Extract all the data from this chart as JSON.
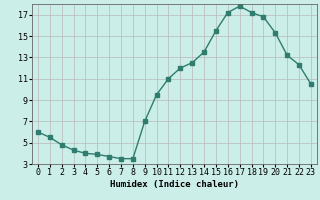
{
  "x": [
    0,
    1,
    2,
    3,
    4,
    5,
    6,
    7,
    8,
    9,
    10,
    11,
    12,
    13,
    14,
    15,
    16,
    17,
    18,
    19,
    20,
    21,
    22,
    23
  ],
  "y": [
    6.0,
    5.5,
    4.8,
    4.3,
    4.0,
    3.9,
    3.7,
    3.5,
    3.5,
    7.0,
    9.5,
    11.0,
    12.0,
    12.5,
    13.5,
    15.5,
    17.2,
    17.8,
    17.2,
    16.8,
    15.3,
    13.2,
    12.3,
    10.5
  ],
  "line_color": "#2e7d6e",
  "marker": "s",
  "marker_size": 2.5,
  "bg_color": "#cceee8",
  "grid_color": "#b8b8b8",
  "xlabel": "Humidex (Indice chaleur)",
  "xlim": [
    -0.5,
    23.5
  ],
  "ylim": [
    3,
    18
  ],
  "yticks": [
    3,
    5,
    7,
    9,
    11,
    13,
    15,
    17
  ],
  "xticks": [
    0,
    1,
    2,
    3,
    4,
    5,
    6,
    7,
    8,
    9,
    10,
    11,
    12,
    13,
    14,
    15,
    16,
    17,
    18,
    19,
    20,
    21,
    22,
    23
  ],
  "label_fontsize": 6.5,
  "tick_fontsize": 6.0
}
